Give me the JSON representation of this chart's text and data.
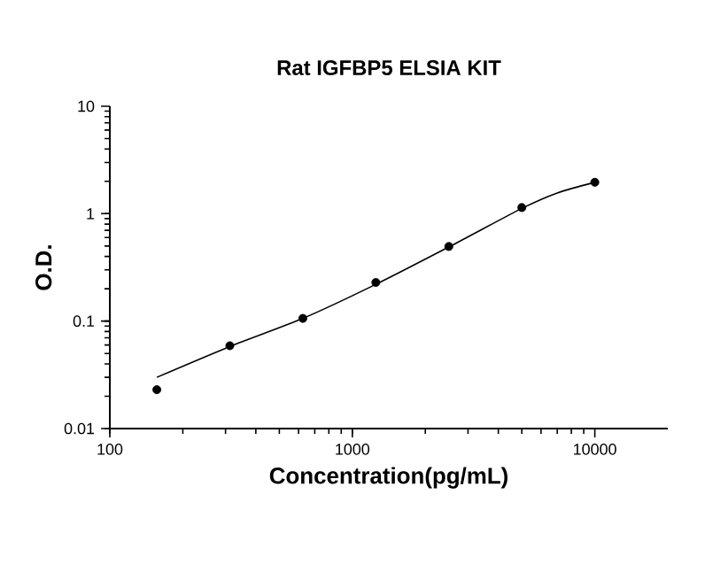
{
  "chart_data": {
    "type": "scatter",
    "title": "Rat IGFBP5 ELSIA KIT",
    "xlabel": "Concentration(pg/mL)",
    "ylabel": "O.D.",
    "log": "xy",
    "xlim": [
      100,
      20000
    ],
    "ylim": [
      0.01,
      10
    ],
    "xticks": [
      100,
      1000,
      10000
    ],
    "yticks": [
      0.01,
      0.1,
      1,
      10
    ],
    "grid": false,
    "series": [
      {
        "type": "scatter",
        "marker": "circle",
        "color": "#000000",
        "x": [
          156.25,
          312.5,
          625,
          1250,
          2500,
          5000,
          10000
        ],
        "values": [
          0.023,
          0.059,
          0.106,
          0.229,
          0.495,
          1.14,
          1.96
        ]
      },
      {
        "type": "line",
        "color": "#000000",
        "marker": "none",
        "x": [
          156.25,
          312.5,
          625,
          1250,
          2500,
          5000,
          7000,
          10000
        ],
        "values": [
          0.03,
          0.058,
          0.106,
          0.22,
          0.49,
          1.12,
          1.56,
          1.96
        ]
      }
    ]
  }
}
